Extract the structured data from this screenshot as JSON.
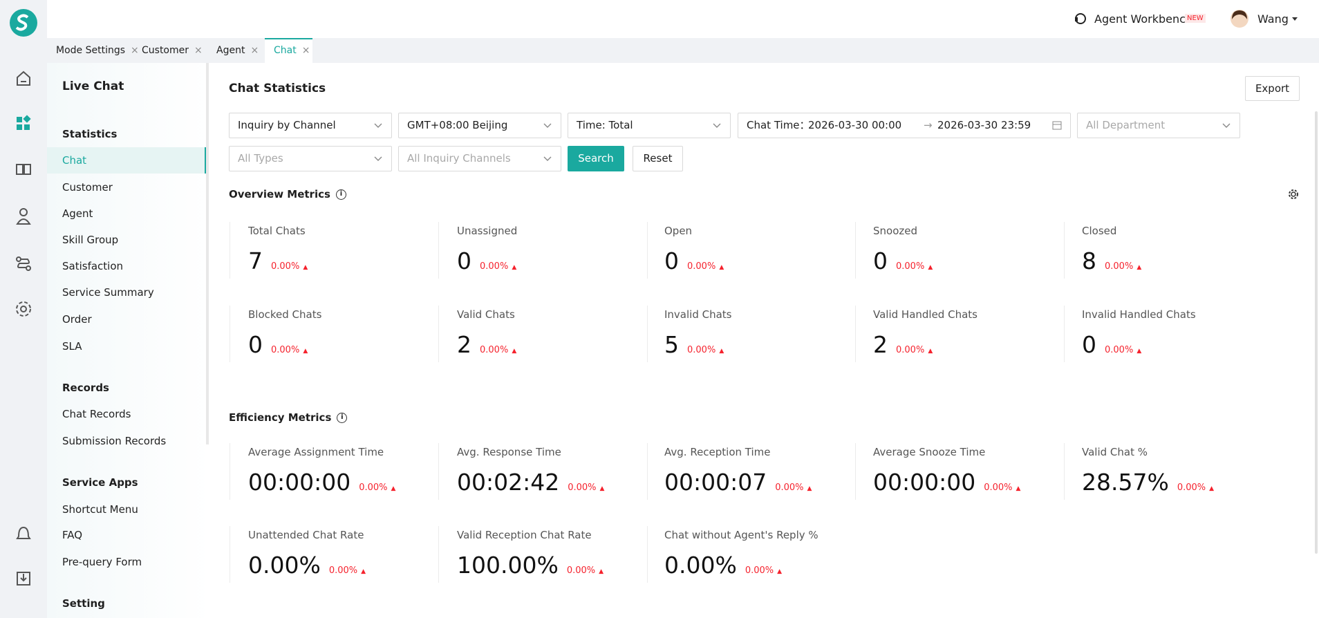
{
  "header": {
    "agent_workbench": "Agent Workbench",
    "new_badge": "NEW",
    "user": "Wang"
  },
  "tabs": [
    "Mode Settings",
    "Customer",
    "Agent",
    "Chat"
  ],
  "sidebar": {
    "title": "Live Chat",
    "sections": [
      {
        "heading": "Statistics",
        "items": [
          "Chat",
          "Customer",
          "Agent",
          "Skill Group",
          "Satisfaction",
          "Service Summary",
          "Order",
          "SLA"
        ]
      },
      {
        "heading": "Records",
        "items": [
          "Chat Records",
          "Submission Records"
        ]
      },
      {
        "heading": "Service Apps",
        "items": [
          "Shortcut Menu",
          "FAQ",
          "Pre-query Form"
        ]
      },
      {
        "heading": "Setting",
        "items": []
      }
    ]
  },
  "main": {
    "title": "Chat Statistics",
    "export": "Export",
    "filters": {
      "group_by": "Inquiry by Channel",
      "timezone": "GMT+08:00 Beijing",
      "time": "Time: Total",
      "chat_time_label": "Chat Time：",
      "start": "2026-03-30 00:00",
      "end": "2026-03-30 23:59",
      "department": "All Department",
      "types": "All Types",
      "channels": "All Inquiry Channels",
      "search": "Search",
      "reset": "Reset"
    },
    "overview": {
      "title": "Overview Metrics",
      "metrics": [
        {
          "label": "Total Chats",
          "value": "7",
          "change": "0.00%"
        },
        {
          "label": "Unassigned",
          "value": "0",
          "change": "0.00%"
        },
        {
          "label": "Open",
          "value": "0",
          "change": "0.00%"
        },
        {
          "label": "Snoozed",
          "value": "0",
          "change": "0.00%"
        },
        {
          "label": "Closed",
          "value": "8",
          "change": "0.00%"
        },
        {
          "label": "Blocked Chats",
          "value": "0",
          "change": "0.00%"
        },
        {
          "label": "Valid Chats",
          "value": "2",
          "change": "0.00%"
        },
        {
          "label": "Invalid Chats",
          "value": "5",
          "change": "0.00%"
        },
        {
          "label": "Valid Handled Chats",
          "value": "2",
          "change": "0.00%"
        },
        {
          "label": "Invalid Handled Chats",
          "value": "0",
          "change": "0.00%"
        }
      ]
    },
    "efficiency": {
      "title": "Efficiency Metrics",
      "metrics": [
        {
          "label": "Average Assignment Time",
          "value": "00:00:00",
          "change": "0.00%"
        },
        {
          "label": "Avg. Response Time",
          "value": "00:02:42",
          "change": "0.00%"
        },
        {
          "label": "Avg. Reception Time",
          "value": "00:00:07",
          "change": "0.00%"
        },
        {
          "label": "Average Snooze Time",
          "value": "00:00:00",
          "change": "0.00%"
        },
        {
          "label": "Valid Chat %",
          "value": "28.57%",
          "change": "0.00%"
        },
        {
          "label": "Unattended Chat Rate",
          "value": "0.00%",
          "change": "0.00%"
        },
        {
          "label": "Valid Reception Chat Rate",
          "value": "100.00%",
          "change": "0.00%"
        },
        {
          "label": "Chat without Agent's Reply %",
          "value": "0.00%",
          "change": "0.00%"
        }
      ]
    }
  }
}
